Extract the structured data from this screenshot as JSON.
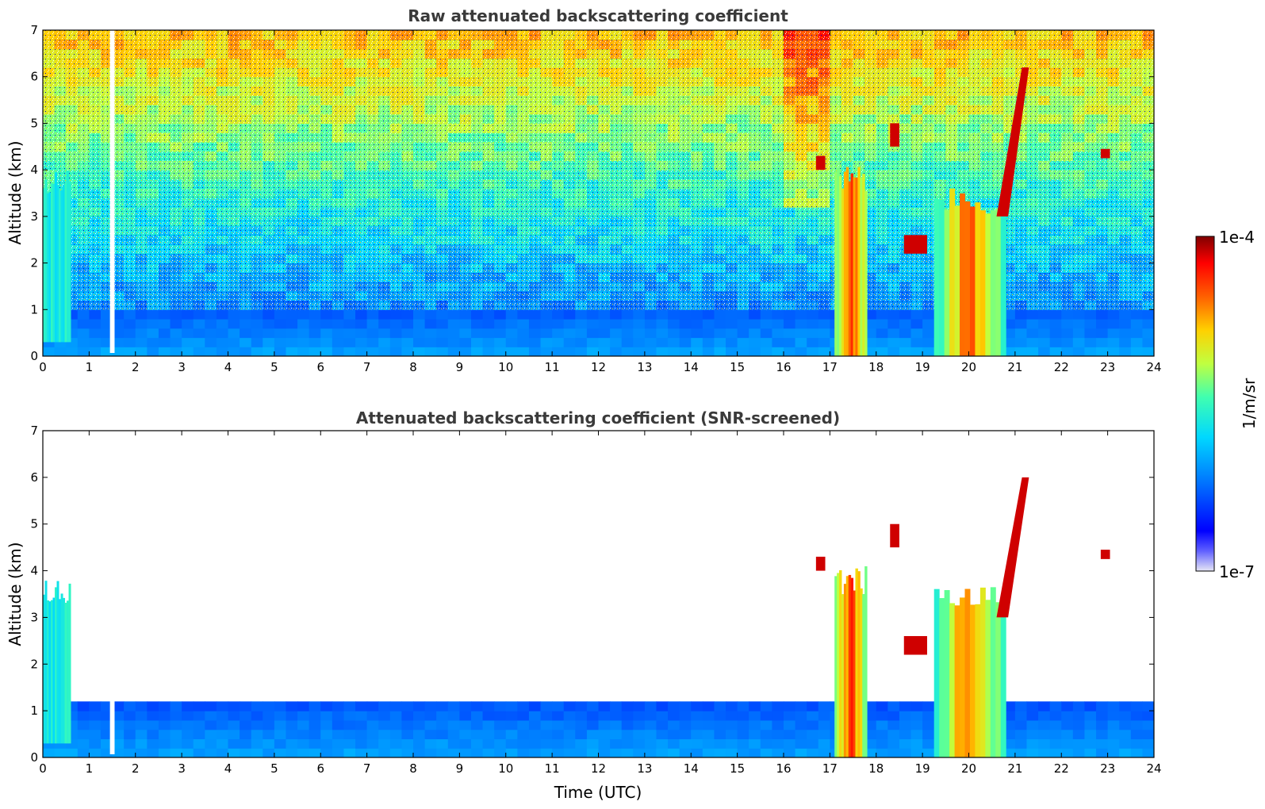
{
  "chart_data": [
    {
      "type": "heatmap",
      "title": "Raw attenuated backscattering coefficient",
      "xlabel": "",
      "ylabel": "Altitude (km)",
      "xlim": [
        0,
        24
      ],
      "ylim": [
        0,
        7
      ],
      "x_ticks": [
        "0",
        "1",
        "2",
        "3",
        "4",
        "5",
        "6",
        "7",
        "8",
        "9",
        "10",
        "11",
        "12",
        "13",
        "14",
        "15",
        "16",
        "17",
        "18",
        "19",
        "20",
        "21",
        "22",
        "23",
        "24"
      ],
      "y_ticks": [
        "0",
        "1",
        "2",
        "3",
        "4",
        "5",
        "6",
        "7"
      ],
      "screened": false,
      "data_gaps": [
        [
          1.45,
          1.55
        ]
      ],
      "features": [
        {
          "kind": "boundary_layer",
          "t_start": 0,
          "t_end": 24,
          "alt_top_km": 1.0,
          "level": 0.25
        },
        {
          "kind": "aerosol_column",
          "t_start": 0,
          "t_end": 0.6,
          "alt_bottom_km": 0.3,
          "alt_top_km": 4.0,
          "level": 0.45
        },
        {
          "kind": "cloud",
          "t_start": 17.1,
          "t_end": 17.8,
          "alt_bottom_km": 0,
          "alt_top_km": 4.1,
          "level": 0.9
        },
        {
          "kind": "cloud",
          "t_start": 19.25,
          "t_end": 20.8,
          "alt_bottom_km": 0,
          "alt_top_km": 3.6,
          "level": 0.85
        },
        {
          "kind": "cloud_layer",
          "t_start": 20.6,
          "t_end": 21.3,
          "alt_bottom_km": 3.0,
          "alt_top_km": 6.2,
          "level": 0.95
        },
        {
          "kind": "cloud_patch",
          "t_start": 16.7,
          "t_end": 16.9,
          "alt_bottom_km": 4.0,
          "alt_top_km": 4.3,
          "level": 0.95
        },
        {
          "kind": "cloud_patch",
          "t_start": 18.3,
          "t_end": 18.5,
          "alt_bottom_km": 4.5,
          "alt_top_km": 5.0,
          "level": 0.95
        },
        {
          "kind": "cloud_patch",
          "t_start": 18.6,
          "t_end": 19.1,
          "alt_bottom_km": 2.2,
          "alt_top_km": 2.6,
          "level": 0.95
        },
        {
          "kind": "cloud_patch",
          "t_start": 22.85,
          "t_end": 23.05,
          "alt_bottom_km": 4.25,
          "alt_top_km": 4.45,
          "level": 0.95
        }
      ]
    },
    {
      "type": "heatmap",
      "title": "Attenuated backscattering coefficient (SNR-screened)",
      "xlabel": "Time (UTC)",
      "ylabel": "Altitude (km)",
      "xlim": [
        0,
        24
      ],
      "ylim": [
        0,
        7
      ],
      "x_ticks": [
        "0",
        "1",
        "2",
        "3",
        "4",
        "5",
        "6",
        "7",
        "8",
        "9",
        "10",
        "11",
        "12",
        "13",
        "14",
        "15",
        "16",
        "17",
        "18",
        "19",
        "20",
        "21",
        "22",
        "23",
        "24"
      ],
      "y_ticks": [
        "0",
        "1",
        "2",
        "3",
        "4",
        "5",
        "6",
        "7"
      ],
      "screened": true,
      "data_gaps": [
        [
          1.45,
          1.55
        ]
      ],
      "features": [
        {
          "kind": "boundary_layer",
          "t_start": 0,
          "t_end": 24,
          "alt_top_km": 1.1,
          "level": 0.22
        },
        {
          "kind": "aerosol_column",
          "t_start": 0,
          "t_end": 0.6,
          "alt_bottom_km": 0.3,
          "alt_top_km": 3.8,
          "level": 0.45
        },
        {
          "kind": "cloud",
          "t_start": 17.1,
          "t_end": 17.8,
          "alt_bottom_km": 0,
          "alt_top_km": 4.1,
          "level": 0.9
        },
        {
          "kind": "cloud",
          "t_start": 19.25,
          "t_end": 20.8,
          "alt_bottom_km": 0,
          "alt_top_km": 3.7,
          "level": 0.85
        },
        {
          "kind": "cloud_layer",
          "t_start": 20.6,
          "t_end": 21.3,
          "alt_bottom_km": 3.0,
          "alt_top_km": 6.0,
          "level": 0.95
        },
        {
          "kind": "cloud_patch",
          "t_start": 16.7,
          "t_end": 16.9,
          "alt_bottom_km": 4.0,
          "alt_top_km": 4.3,
          "level": 0.95
        },
        {
          "kind": "cloud_patch",
          "t_start": 18.3,
          "t_end": 18.5,
          "alt_bottom_km": 4.5,
          "alt_top_km": 5.0,
          "level": 0.95
        },
        {
          "kind": "cloud_patch",
          "t_start": 18.6,
          "t_end": 19.1,
          "alt_bottom_km": 2.2,
          "alt_top_km": 2.6,
          "level": 0.95
        },
        {
          "kind": "cloud_patch",
          "t_start": 22.85,
          "t_end": 23.05,
          "alt_bottom_km": 4.25,
          "alt_top_km": 4.45,
          "level": 0.95
        }
      ]
    }
  ],
  "colorbar": {
    "label": "1/m/sr",
    "max_label": "1e-4",
    "min_label": "1e-7",
    "colormap": "jet",
    "colors": [
      "#e6e6f5",
      "#0000ff",
      "#00a0ff",
      "#20e0e0",
      "#80ff80",
      "#ffe000",
      "#ff6000",
      "#ff0000",
      "#800000"
    ]
  }
}
